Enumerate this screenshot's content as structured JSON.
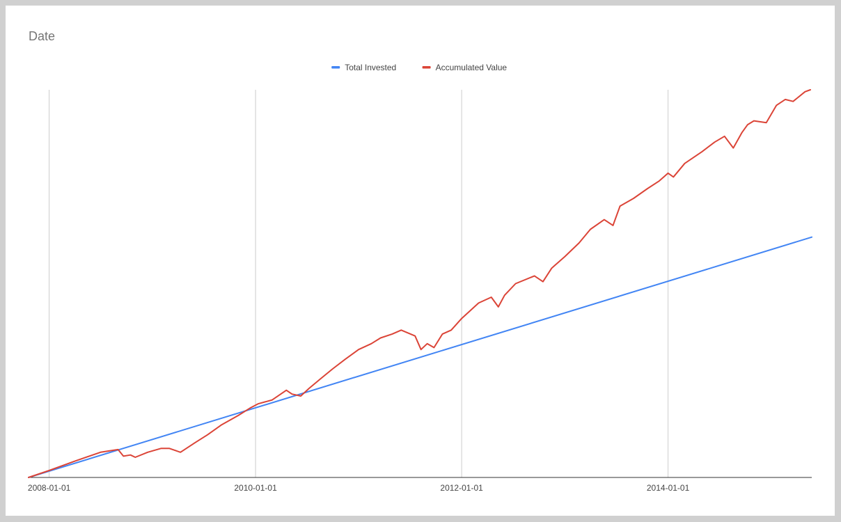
{
  "chart_data": {
    "type": "line",
    "title": "Date",
    "xlabel": "",
    "ylabel": "",
    "x_range": [
      "2007-10-20",
      "2015-05-25"
    ],
    "y_range": [
      0,
      1
    ],
    "ytick_labels": false,
    "grid": "vertical",
    "legend_position": "top",
    "xtick_labels": [
      "2008-01-01",
      "2010-01-01",
      "2012-01-01",
      "2014-01-01"
    ],
    "series": [
      {
        "name": "Total Invested",
        "color": "#4285f4",
        "x": [
          "2007-10-20",
          "2015-05-25"
        ],
        "y": [
          0.0,
          0.62
        ]
      },
      {
        "name": "Accumulated Value",
        "color": "#db4437",
        "x": [
          "2007-10-20",
          "2008-01-01",
          "2008-04-01",
          "2008-07-01",
          "2008-09-01",
          "2008-09-20",
          "2008-10-15",
          "2008-11-01",
          "2008-12-15",
          "2009-02-01",
          "2009-03-01",
          "2009-04-10",
          "2009-06-01",
          "2009-07-15",
          "2009-09-01",
          "2009-11-01",
          "2009-12-15",
          "2010-01-10",
          "2010-03-01",
          "2010-04-20",
          "2010-05-10",
          "2010-06-10",
          "2010-07-10",
          "2010-08-20",
          "2010-10-01",
          "2010-11-15",
          "2011-01-01",
          "2011-02-15",
          "2011-03-20",
          "2011-04-30",
          "2011-06-01",
          "2011-07-20",
          "2011-08-10",
          "2011-09-01",
          "2011-09-25",
          "2011-10-25",
          "2011-11-25",
          "2012-01-01",
          "2012-03-01",
          "2012-04-15",
          "2012-05-10",
          "2012-06-01",
          "2012-07-10",
          "2012-09-15",
          "2012-10-15",
          "2012-11-15",
          "2013-01-01",
          "2013-02-20",
          "2013-04-01",
          "2013-05-20",
          "2013-06-20",
          "2013-07-15",
          "2013-09-01",
          "2013-10-20",
          "2013-12-01",
          "2014-01-01",
          "2014-01-20",
          "2014-03-01",
          "2014-05-01",
          "2014-06-15",
          "2014-07-20",
          "2014-08-20",
          "2014-09-20",
          "2014-10-10",
          "2014-11-01",
          "2014-12-15",
          "2015-01-20",
          "2015-02-20",
          "2015-03-20",
          "2015-05-01",
          "2015-05-20"
        ],
        "y": [
          0.0,
          0.018,
          0.042,
          0.065,
          0.072,
          0.055,
          0.058,
          0.052,
          0.065,
          0.075,
          0.075,
          0.065,
          0.09,
          0.11,
          0.135,
          0.16,
          0.18,
          0.19,
          0.2,
          0.225,
          0.215,
          0.21,
          0.23,
          0.255,
          0.28,
          0.305,
          0.33,
          0.345,
          0.36,
          0.37,
          0.38,
          0.365,
          0.33,
          0.345,
          0.335,
          0.37,
          0.38,
          0.41,
          0.45,
          0.465,
          0.44,
          0.47,
          0.5,
          0.52,
          0.505,
          0.54,
          0.57,
          0.605,
          0.64,
          0.665,
          0.65,
          0.7,
          0.72,
          0.745,
          0.765,
          0.785,
          0.775,
          0.81,
          0.84,
          0.865,
          0.88,
          0.85,
          0.89,
          0.91,
          0.92,
          0.915,
          0.96,
          0.975,
          0.97,
          0.995,
          1.0
        ]
      }
    ]
  }
}
